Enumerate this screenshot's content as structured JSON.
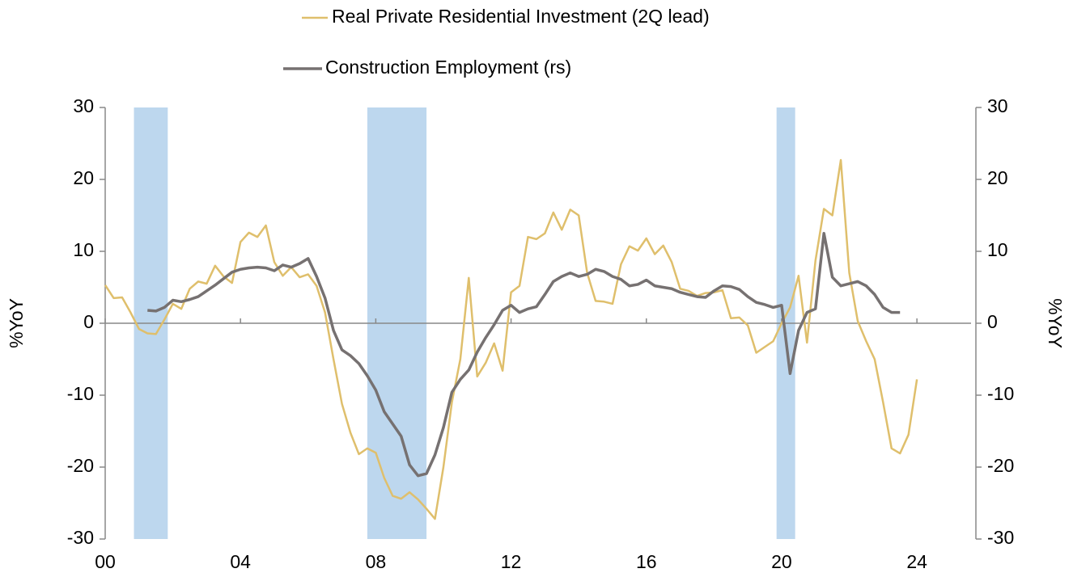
{
  "chart_data": {
    "type": "line",
    "legend": "top",
    "xlim": [
      2000,
      2025.6
    ],
    "ylim": [
      -30,
      30
    ],
    "y2lim": [
      -30,
      30
    ],
    "xticks": [
      {
        "value": 2000,
        "label": "00"
      },
      {
        "value": 2004,
        "label": "04"
      },
      {
        "value": 2008,
        "label": "08"
      },
      {
        "value": 2012,
        "label": "12"
      },
      {
        "value": 2016,
        "label": "16"
      },
      {
        "value": 2020,
        "label": "20"
      },
      {
        "value": 2024,
        "label": "24"
      }
    ],
    "yticks": [
      30,
      20,
      10,
      0,
      -10,
      -20,
      -30
    ],
    "y2ticks": [
      30,
      20,
      10,
      0,
      -10,
      -20,
      -30
    ],
    "ylabel": "%YoY",
    "y2label": "%YoY",
    "recession_color": "#bdd7ee",
    "recessions": [
      [
        2000.85,
        2001.85
      ],
      [
        2007.75,
        2009.5
      ],
      [
        2019.85,
        2020.4
      ]
    ],
    "series": [
      {
        "name": "Real Private Residential Investment (2Q lead)",
        "color": "#dfbf6c",
        "x": [
          2000,
          2000.25,
          2000.5,
          2000.75,
          2001,
          2001.25,
          2001.5,
          2001.75,
          2002,
          2002.25,
          2002.5,
          2002.75,
          2003,
          2003.25,
          2003.5,
          2003.75,
          2004,
          2004.25,
          2004.5,
          2004.75,
          2005,
          2005.25,
          2005.5,
          2005.75,
          2006,
          2006.25,
          2006.5,
          2006.75,
          2007,
          2007.25,
          2007.5,
          2007.75,
          2008,
          2008.25,
          2008.5,
          2008.75,
          2009,
          2009.25,
          2009.5,
          2009.75,
          2010,
          2010.25,
          2010.5,
          2010.75,
          2011,
          2011.25,
          2011.5,
          2011.75,
          2012,
          2012.25,
          2012.5,
          2012.75,
          2013,
          2013.25,
          2013.5,
          2013.75,
          2014,
          2014.25,
          2014.5,
          2014.75,
          2015,
          2015.25,
          2015.5,
          2015.75,
          2016,
          2016.25,
          2016.5,
          2016.75,
          2017,
          2017.25,
          2017.5,
          2017.75,
          2018,
          2018.25,
          2018.5,
          2018.75,
          2019,
          2019.25,
          2019.5,
          2019.75,
          2020,
          2020.25,
          2020.5,
          2020.75,
          2021,
          2021.25,
          2021.5,
          2021.75,
          2022,
          2022.25,
          2022.5,
          2022.75,
          2023,
          2023.25,
          2023.5,
          2023.75,
          2024
        ],
        "values": [
          5.3,
          3.5,
          3.6,
          1.5,
          -0.8,
          -1.4,
          -1.5,
          0.5,
          2.7,
          2.0,
          4.8,
          5.8,
          5.5,
          8.0,
          6.5,
          5.6,
          11.3,
          12.6,
          12.0,
          13.6,
          8.5,
          6.6,
          7.8,
          6.4,
          6.8,
          5.2,
          1.5,
          -5.0,
          -11.2,
          -15.2,
          -18.2,
          -17.4,
          -18.0,
          -21.5,
          -24.0,
          -24.4,
          -23.5,
          -24.5,
          -25.8,
          -27.2,
          -20.0,
          -11.0,
          -5.0,
          6.3,
          -7.4,
          -5.5,
          -2.8,
          -6.6,
          4.3,
          5.2,
          12.0,
          11.7,
          12.5,
          15.4,
          13.0,
          15.8,
          15.0,
          7.0,
          3.1,
          3.0,
          2.7,
          8.2,
          10.7,
          10.1,
          11.8,
          9.6,
          10.8,
          8.5,
          4.8,
          4.5,
          3.8,
          4.2,
          4.3,
          4.6,
          0.7,
          0.8,
          -0.3,
          -4.1,
          -3.3,
          -2.5,
          0.0,
          2.2,
          6.6,
          -2.7,
          8.7,
          15.9,
          15.0,
          22.7,
          7.0,
          0.3,
          -2.5,
          -5.0,
          -11.0,
          -17.4,
          -18.1,
          -15.5,
          -7.8
        ]
      },
      {
        "name": "Construction Employment (rs)",
        "color": "#767171",
        "axis": "y2",
        "x": [
          2001.25,
          2001.5,
          2001.75,
          2002,
          2002.25,
          2002.5,
          2002.75,
          2003,
          2003.25,
          2003.5,
          2003.75,
          2004,
          2004.25,
          2004.5,
          2004.75,
          2005,
          2005.25,
          2005.5,
          2005.75,
          2006,
          2006.25,
          2006.5,
          2006.75,
          2007,
          2007.25,
          2007.5,
          2007.75,
          2008,
          2008.25,
          2008.5,
          2008.75,
          2009,
          2009.25,
          2009.5,
          2009.75,
          2010,
          2010.25,
          2010.5,
          2010.75,
          2011,
          2011.25,
          2011.5,
          2011.75,
          2012,
          2012.25,
          2012.5,
          2012.75,
          2013,
          2013.25,
          2013.5,
          2013.75,
          2014,
          2014.25,
          2014.5,
          2014.75,
          2015,
          2015.25,
          2015.5,
          2015.75,
          2016,
          2016.25,
          2016.5,
          2016.75,
          2017,
          2017.25,
          2017.5,
          2017.75,
          2018,
          2018.25,
          2018.5,
          2018.75,
          2019,
          2019.25,
          2019.5,
          2019.75,
          2020,
          2020.25,
          2020.5,
          2020.75,
          2021,
          2021.25,
          2021.5,
          2021.75,
          2022,
          2022.25,
          2022.5,
          2022.75,
          2023,
          2023.25,
          2023.5
        ],
        "values": [
          1.8,
          1.7,
          2.2,
          3.2,
          3.0,
          3.3,
          3.7,
          4.5,
          5.3,
          6.2,
          7.1,
          7.5,
          7.7,
          7.8,
          7.7,
          7.3,
          8.1,
          7.8,
          8.3,
          9.0,
          6.5,
          3.5,
          -1.0,
          -3.7,
          -4.5,
          -5.6,
          -7.3,
          -9.3,
          -12.3,
          -14.0,
          -15.7,
          -19.7,
          -21.2,
          -20.9,
          -18.3,
          -14.5,
          -9.6,
          -7.8,
          -6.5,
          -4.0,
          -2.0,
          -0.2,
          1.8,
          2.5,
          1.5,
          2.0,
          2.3,
          4.0,
          5.8,
          6.5,
          7.0,
          6.5,
          6.8,
          7.5,
          7.2,
          6.5,
          6.1,
          5.2,
          5.4,
          6.0,
          5.2,
          5.0,
          4.8,
          4.3,
          4.0,
          3.7,
          3.6,
          4.5,
          5.2,
          5.1,
          4.7,
          3.7,
          2.9,
          2.6,
          2.2,
          2.5,
          -7.0,
          -1.0,
          1.5,
          2.0,
          12.5,
          6.4,
          5.2,
          5.5,
          5.8,
          5.2,
          4.0,
          2.2,
          1.5,
          1.5
        ]
      }
    ]
  }
}
